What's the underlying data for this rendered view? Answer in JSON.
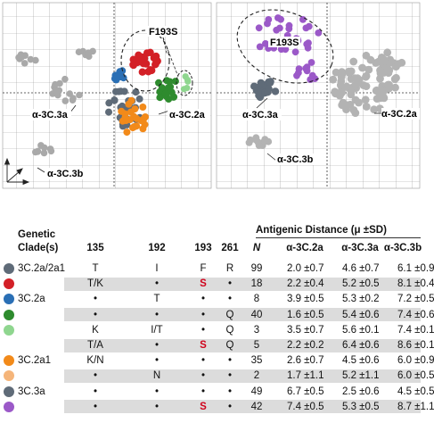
{
  "maps": {
    "left": {
      "labels": {
        "f193s": "F193S",
        "a3c3a": "α-3C.3a",
        "a3c2a": "α-3C.2a",
        "a3c3b": "α-3C.3b"
      },
      "colors": {
        "grey": "#a9a9a9",
        "dark": "#5f6b78",
        "red": "#d32027",
        "blue": "#2a6fb5",
        "green": "#2e8b2e",
        "lightgreen": "#8fd68f",
        "orange": "#f28a1a"
      }
    },
    "right": {
      "labels": {
        "f193s": "F193S",
        "a3c3a": "α-3C.3a",
        "a3c2a": "α-3C.2a",
        "a3c3b": "α-3C.3b"
      },
      "colors": {
        "grey": "#b3b3b3",
        "dark": "#5f6b78",
        "purple": "#9b59c8"
      }
    }
  },
  "table": {
    "header": {
      "genetic": "Genetic",
      "clades": "Clade(s)",
      "p135": "135",
      "p192": "192",
      "p193": "193",
      "p261": "261",
      "n": "N",
      "antigenic": "Antigenic Distance (μ ±SD)",
      "a2a": "α-3C.2a",
      "a3a": "α-3C.3a",
      "a3b": "α-3C.3b"
    },
    "rows": [
      {
        "clade": "3C.2a/2a1",
        "p135": "T",
        "p192": "I",
        "p193": "F",
        "p261": "R",
        "n": "99",
        "d2a": "2.0 ±0.7",
        "d3a": "4.6 ±0.7",
        "d3b": "6.1 ±0.9",
        "shade": false,
        "dot": "#5f6b78"
      },
      {
        "clade": "",
        "p135": "T/K",
        "p192": "•",
        "p193": "S",
        "p261": "•",
        "n": "18",
        "d2a": "2.2 ±0.4",
        "d3a": "5.2 ±0.5",
        "d3b": "8.1 ±0.4",
        "shade": true,
        "dot": "#d32027"
      },
      {
        "clade": "3C.2a",
        "p135": "•",
        "p192": "T",
        "p193": "•",
        "p261": "•",
        "n": "8",
        "d2a": "3.9 ±0.5",
        "d3a": "5.3 ±0.2",
        "d3b": "7.2 ±0.5",
        "shade": false,
        "dot": "#2a6fb5"
      },
      {
        "clade": "",
        "p135": "•",
        "p192": "•",
        "p193": "•",
        "p261": "Q",
        "n": "40",
        "d2a": "1.6 ±0.5",
        "d3a": "5.4 ±0.6",
        "d3b": "7.4 ±0.6",
        "shade": true,
        "dot": "#2e8b2e"
      },
      {
        "clade": "",
        "p135": "K",
        "p192": "I/T",
        "p193": "•",
        "p261": "Q",
        "n": "3",
        "d2a": "3.5 ±0.7",
        "d3a": "5.6 ±0.1",
        "d3b": "7.4 ±0.1",
        "shade": false,
        "dot": "#8fd68f"
      },
      {
        "clade": "",
        "p135": "T/A",
        "p192": "•",
        "p193": "S",
        "p261": "Q",
        "n": "5",
        "d2a": "2.2 ±0.2",
        "d3a": "6.4 ±0.6",
        "d3b": "8.6 ±0.1",
        "shade": true,
        "dot": ""
      },
      {
        "clade": "3C.2a1",
        "p135": "K/N",
        "p192": "•",
        "p193": "•",
        "p261": "•",
        "n": "35",
        "d2a": "2.6 ±0.7",
        "d3a": "4.5 ±0.6",
        "d3b": "6.0 ±0.9",
        "shade": false,
        "dot": "#f28a1a"
      },
      {
        "clade": "",
        "p135": "•",
        "p192": "N",
        "p193": "•",
        "p261": "•",
        "n": "2",
        "d2a": "1.7 ±1.1",
        "d3a": "5.2 ±1.1",
        "d3b": "6.0 ±0.5",
        "shade": true,
        "dot": "#f5b57a"
      },
      {
        "clade": "3C.3a",
        "p135": "•",
        "p192": "•",
        "p193": "•",
        "p261": "•",
        "n": "49",
        "d2a": "6.7 ±0.5",
        "d3a": "2.5 ±0.6",
        "d3b": "4.5 ±0.5",
        "shade": false,
        "dot": "#5f6b78"
      },
      {
        "clade": "",
        "p135": "•",
        "p192": "•",
        "p193": "S",
        "p261": "•",
        "n": "42",
        "d2a": "7.4 ±0.5",
        "d3a": "5.3 ±0.5",
        "d3b": "8.7 ±1.1",
        "shade": true,
        "dot": "#9b59c8"
      }
    ]
  }
}
